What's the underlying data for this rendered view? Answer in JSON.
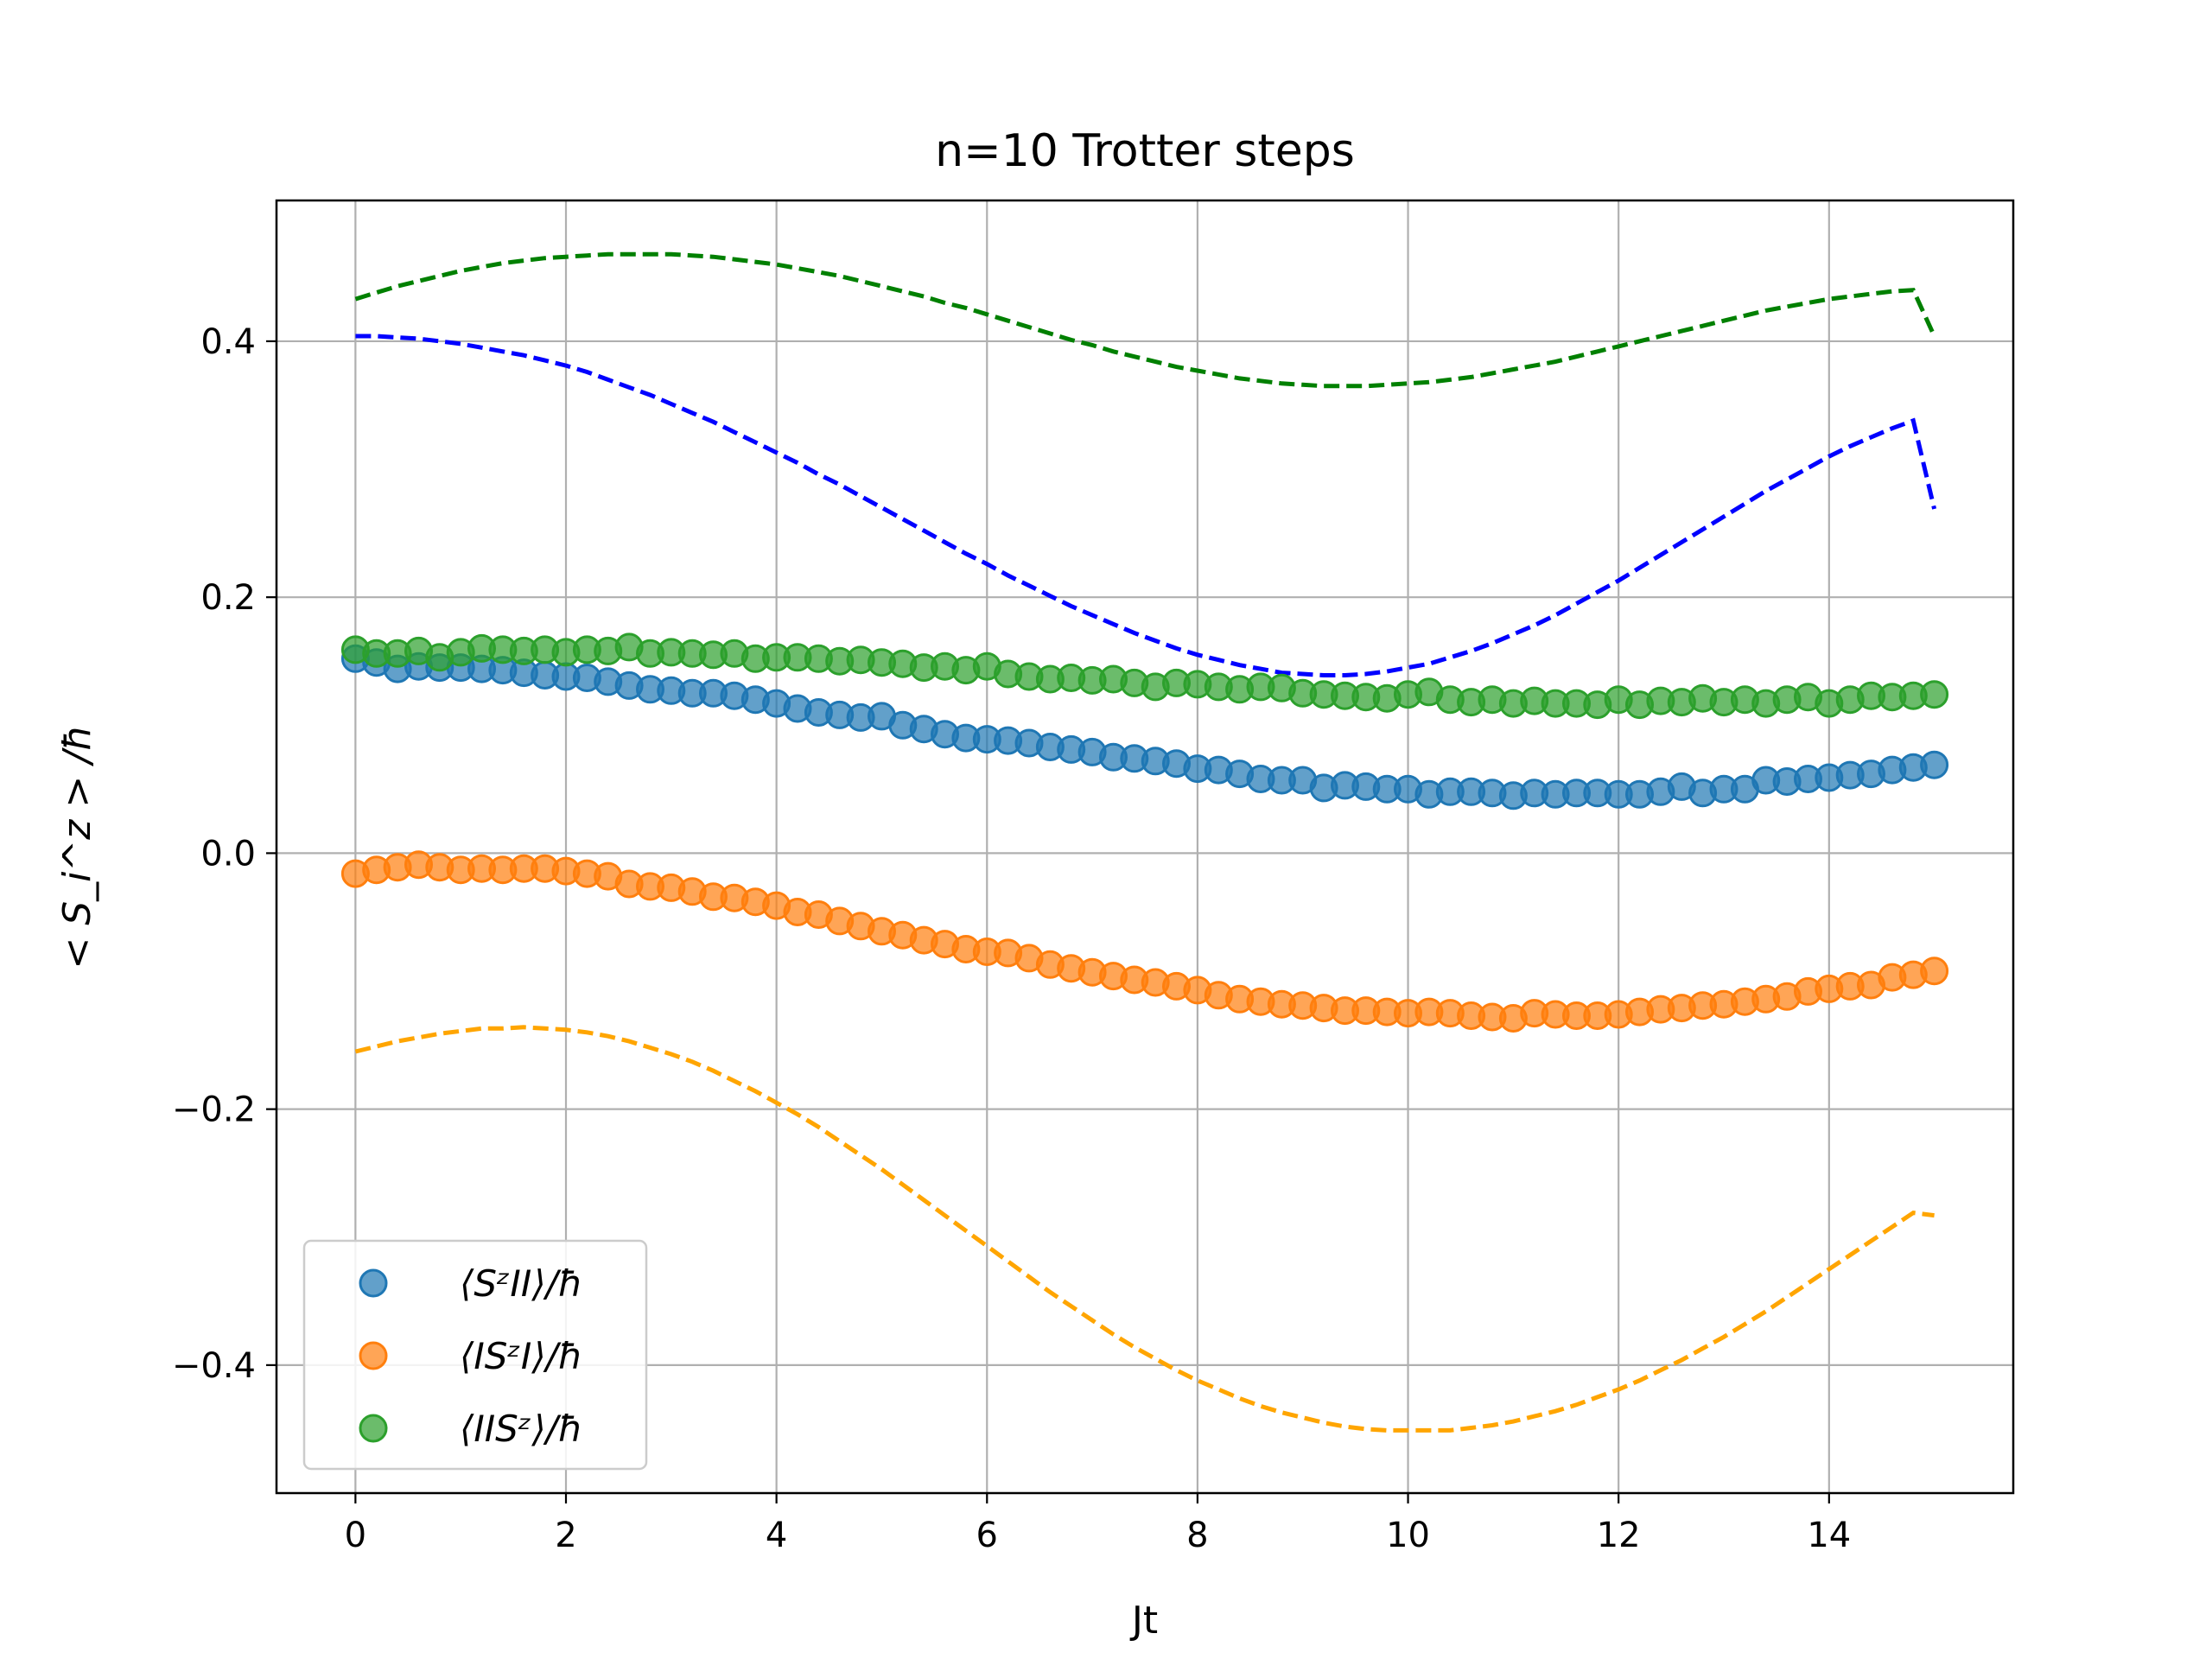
{
  "chart_data": {
    "type": "scatter",
    "title": "n=10 Trotter steps",
    "xlabel": "Jt",
    "ylabel": "< S_i^z > /ħ",
    "xlim": [
      -0.75,
      15.75
    ],
    "ylim": [
      -0.5,
      0.51
    ],
    "xticks": [
      0,
      2,
      4,
      6,
      8,
      10,
      12,
      14
    ],
    "yticks": [
      -0.4,
      -0.2,
      0.0,
      0.2,
      0.4
    ],
    "ytick_labels": [
      "−0.4",
      "−0.2",
      "0.0",
      "0.2",
      "0.4"
    ],
    "xtick_labels": [
      "0",
      "2",
      "4",
      "6",
      "8",
      "10",
      "12",
      "14"
    ],
    "grid": true,
    "legend_position": "lower-left",
    "x": [
      0.0,
      0.2,
      0.4,
      0.6,
      0.8,
      1.0,
      1.2,
      1.4,
      1.6,
      1.8,
      2.0,
      2.2,
      2.4,
      2.6,
      2.8,
      3.0,
      3.2,
      3.4,
      3.6,
      3.8,
      4.0,
      4.2,
      4.4,
      4.6,
      4.8,
      5.0,
      5.2,
      5.4,
      5.6,
      5.8,
      6.0,
      6.2,
      6.4,
      6.6,
      6.8,
      7.0,
      7.2,
      7.4,
      7.6,
      7.8,
      8.0,
      8.2,
      8.4,
      8.6,
      8.8,
      9.0,
      9.2,
      9.4,
      9.6,
      9.8,
      10.0,
      10.2,
      10.4,
      10.6,
      10.8,
      11.0,
      11.2,
      11.4,
      11.6,
      11.8,
      12.0,
      12.2,
      12.4,
      12.6,
      12.8,
      13.0,
      13.2,
      13.4,
      13.6,
      13.8,
      14.0,
      14.2,
      14.4,
      14.6,
      14.8,
      15.0
    ],
    "series": [
      {
        "name": "⟨SᶻII⟩/ħ",
        "kind": "scatter",
        "color": "#1f77b4",
        "values": [
          0.152,
          0.149,
          0.144,
          0.146,
          0.145,
          0.145,
          0.144,
          0.143,
          0.141,
          0.139,
          0.138,
          0.137,
          0.134,
          0.131,
          0.128,
          0.127,
          0.125,
          0.125,
          0.123,
          0.12,
          0.117,
          0.113,
          0.11,
          0.108,
          0.106,
          0.107,
          0.1,
          0.097,
          0.093,
          0.09,
          0.089,
          0.088,
          0.086,
          0.083,
          0.081,
          0.079,
          0.075,
          0.074,
          0.072,
          0.07,
          0.066,
          0.065,
          0.062,
          0.058,
          0.057,
          0.057,
          0.051,
          0.053,
          0.052,
          0.05,
          0.05,
          0.046,
          0.048,
          0.048,
          0.047,
          0.045,
          0.047,
          0.046,
          0.047,
          0.047,
          0.046,
          0.046,
          0.048,
          0.052,
          0.047,
          0.05,
          0.05,
          0.057,
          0.056,
          0.058,
          0.059,
          0.061,
          0.062,
          0.065,
          0.067,
          0.069
        ]
      },
      {
        "name": "⟨ISᶻI⟩/ħ",
        "kind": "scatter",
        "color": "#ff7f0e",
        "values": [
          -0.016,
          -0.013,
          -0.011,
          -0.009,
          -0.011,
          -0.013,
          -0.012,
          -0.013,
          -0.012,
          -0.012,
          -0.014,
          -0.016,
          -0.018,
          -0.024,
          -0.026,
          -0.027,
          -0.03,
          -0.034,
          -0.035,
          -0.038,
          -0.041,
          -0.046,
          -0.048,
          -0.053,
          -0.057,
          -0.061,
          -0.064,
          -0.068,
          -0.071,
          -0.075,
          -0.077,
          -0.078,
          -0.082,
          -0.087,
          -0.09,
          -0.093,
          -0.096,
          -0.099,
          -0.101,
          -0.104,
          -0.107,
          -0.111,
          -0.114,
          -0.116,
          -0.118,
          -0.119,
          -0.121,
          -0.123,
          -0.123,
          -0.124,
          -0.125,
          -0.124,
          -0.125,
          -0.127,
          -0.128,
          -0.129,
          -0.125,
          -0.126,
          -0.127,
          -0.127,
          -0.126,
          -0.124,
          -0.122,
          -0.121,
          -0.119,
          -0.118,
          -0.116,
          -0.114,
          -0.112,
          -0.108,
          -0.106,
          -0.104,
          -0.103,
          -0.097,
          -0.095,
          -0.092
        ]
      },
      {
        "name": "⟨IISᶻ⟩/ħ",
        "kind": "scatter",
        "color": "#2ca02c",
        "values": [
          0.159,
          0.156,
          0.156,
          0.158,
          0.153,
          0.157,
          0.16,
          0.159,
          0.158,
          0.159,
          0.157,
          0.159,
          0.158,
          0.161,
          0.156,
          0.157,
          0.156,
          0.155,
          0.156,
          0.152,
          0.153,
          0.153,
          0.152,
          0.15,
          0.151,
          0.149,
          0.148,
          0.145,
          0.146,
          0.143,
          0.146,
          0.14,
          0.138,
          0.136,
          0.137,
          0.135,
          0.136,
          0.133,
          0.13,
          0.133,
          0.132,
          0.13,
          0.128,
          0.13,
          0.129,
          0.125,
          0.124,
          0.123,
          0.122,
          0.121,
          0.124,
          0.126,
          0.12,
          0.118,
          0.12,
          0.117,
          0.119,
          0.117,
          0.117,
          0.116,
          0.12,
          0.116,
          0.119,
          0.118,
          0.121,
          0.118,
          0.12,
          0.117,
          0.12,
          0.122,
          0.117,
          0.12,
          0.123,
          0.122,
          0.123,
          0.124
        ]
      },
      {
        "name": "",
        "kind": "dashed-line",
        "color": "#0000ff",
        "values": [
          0.404,
          0.404,
          0.403,
          0.402,
          0.4,
          0.398,
          0.395,
          0.392,
          0.389,
          0.385,
          0.381,
          0.376,
          0.37,
          0.364,
          0.358,
          0.351,
          0.344,
          0.337,
          0.329,
          0.321,
          0.313,
          0.305,
          0.296,
          0.288,
          0.279,
          0.27,
          0.261,
          0.252,
          0.243,
          0.234,
          0.226,
          0.217,
          0.209,
          0.201,
          0.193,
          0.186,
          0.179,
          0.172,
          0.166,
          0.16,
          0.155,
          0.151,
          0.147,
          0.144,
          0.141,
          0.14,
          0.139,
          0.139,
          0.14,
          0.142,
          0.145,
          0.148,
          0.153,
          0.158,
          0.164,
          0.171,
          0.178,
          0.186,
          0.195,
          0.204,
          0.213,
          0.223,
          0.233,
          0.243,
          0.253,
          0.263,
          0.273,
          0.283,
          0.292,
          0.301,
          0.31,
          0.318,
          0.325,
          0.332,
          0.338,
          0.269
        ]
      },
      {
        "name": "",
        "kind": "dashed-line",
        "color": "#ffa500",
        "values": [
          -0.155,
          -0.151,
          -0.147,
          -0.144,
          -0.141,
          -0.139,
          -0.137,
          -0.137,
          -0.136,
          -0.137,
          -0.138,
          -0.14,
          -0.143,
          -0.147,
          -0.152,
          -0.157,
          -0.163,
          -0.17,
          -0.178,
          -0.186,
          -0.195,
          -0.204,
          -0.214,
          -0.225,
          -0.236,
          -0.247,
          -0.259,
          -0.271,
          -0.283,
          -0.295,
          -0.307,
          -0.319,
          -0.331,
          -0.343,
          -0.354,
          -0.365,
          -0.376,
          -0.386,
          -0.395,
          -0.404,
          -0.412,
          -0.419,
          -0.426,
          -0.432,
          -0.437,
          -0.441,
          -0.445,
          -0.448,
          -0.45,
          -0.451,
          -0.451,
          -0.451,
          -0.451,
          -0.449,
          -0.447,
          -0.444,
          -0.44,
          -0.436,
          -0.431,
          -0.425,
          -0.419,
          -0.412,
          -0.404,
          -0.396,
          -0.387,
          -0.378,
          -0.368,
          -0.358,
          -0.347,
          -0.336,
          -0.325,
          -0.314,
          -0.303,
          -0.292,
          -0.281,
          -0.283
        ]
      },
      {
        "name": "",
        "kind": "dashed-line",
        "color": "#008000",
        "values": [
          0.433,
          0.438,
          0.443,
          0.447,
          0.451,
          0.455,
          0.458,
          0.461,
          0.463,
          0.465,
          0.466,
          0.467,
          0.468,
          0.468,
          0.468,
          0.468,
          0.467,
          0.466,
          0.464,
          0.462,
          0.46,
          0.457,
          0.454,
          0.451,
          0.447,
          0.443,
          0.439,
          0.435,
          0.43,
          0.426,
          0.421,
          0.416,
          0.411,
          0.406,
          0.401,
          0.397,
          0.392,
          0.388,
          0.384,
          0.38,
          0.377,
          0.374,
          0.371,
          0.369,
          0.367,
          0.366,
          0.365,
          0.365,
          0.365,
          0.366,
          0.367,
          0.368,
          0.37,
          0.372,
          0.375,
          0.378,
          0.381,
          0.384,
          0.388,
          0.392,
          0.396,
          0.4,
          0.404,
          0.408,
          0.412,
          0.416,
          0.42,
          0.424,
          0.427,
          0.43,
          0.433,
          0.435,
          0.437,
          0.439,
          0.44,
          0.404
        ]
      }
    ]
  }
}
